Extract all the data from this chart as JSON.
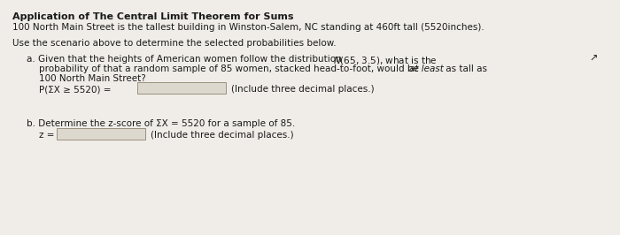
{
  "bg_color": "#f0ede8",
  "text_color": "#1a1a1a",
  "title_line1": "Application of The Central Limit Theorem for Sums",
  "title_line2": "100 North Main Street is the tallest building in Winston-Salem, NC standing at 460ft tall (5520inches).",
  "intro": "Use the scenario above to determine the selected probabilities below.",
  "part_a_line1_pre": "a. Given that the heights of American women follow the distribution ",
  "part_a_dist": "N(65, 3.5)",
  "part_a_line1_post": ", what is the",
  "part_a_line2": "probability of that a random sample of 85 women, stacked head-to-foot, would be at least as tall as",
  "part_a_line3": "100 North Main Street?",
  "part_a_formula": "P(ΣX ≥ 5520) =",
  "part_a_hint": "(Include three decimal places.)",
  "part_b_line": "b. Determine the z-score of ΣX = 5520 for a sample of 85.",
  "part_b_z": "z =",
  "part_b_hint": "(Include three decimal places.)",
  "box_facecolor": "#ddd8ce",
  "box_edgecolor": "#999080",
  "font_size": 7.5,
  "font_size_bold": 7.5,
  "indent_a": 0.055,
  "indent_a2": 0.09
}
